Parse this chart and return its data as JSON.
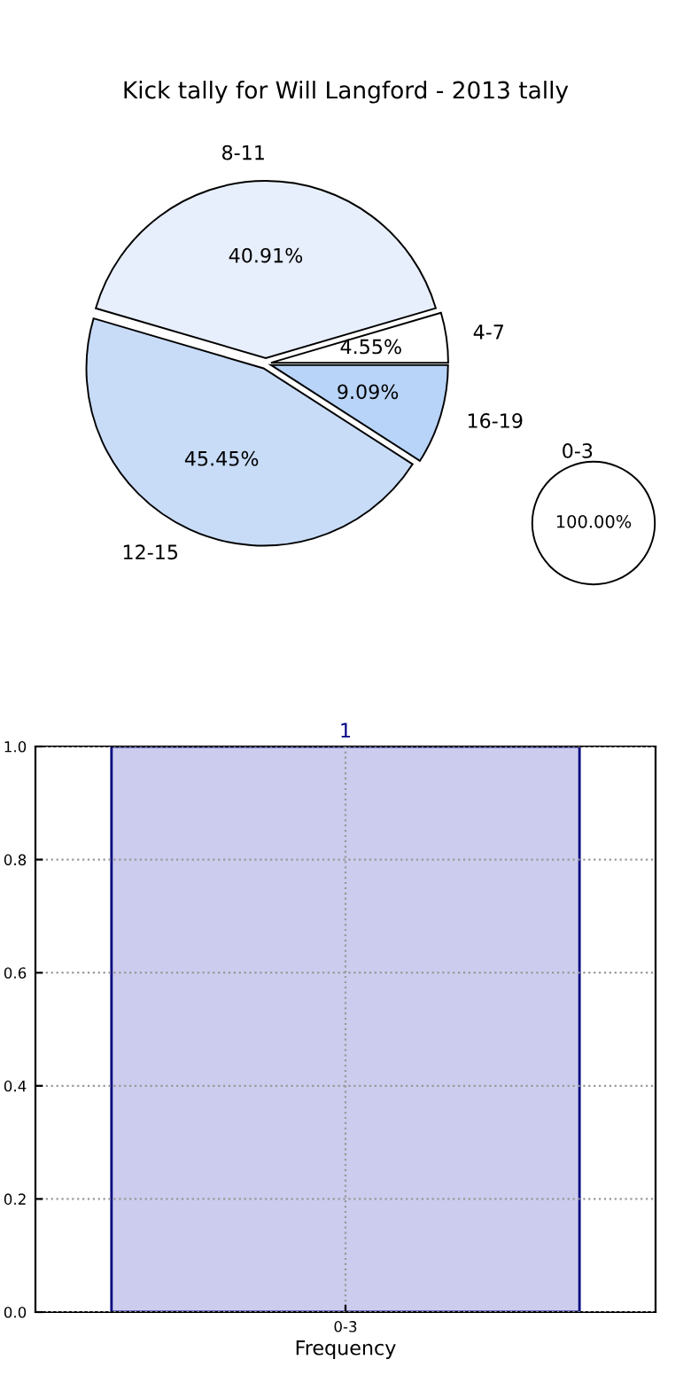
{
  "chart_data": [
    {
      "type": "pie",
      "title": "Kick tally for Will Langford - 2013 tally",
      "categories": [
        "4-7",
        "8-11",
        "12-15",
        "16-19"
      ],
      "values": [
        4.55,
        40.91,
        45.45,
        9.09
      ],
      "colors": [
        "#ffffff",
        "#e8effc",
        "#c8dcf8",
        "#b8d4f8"
      ],
      "value_labels": [
        "4.55%",
        "40.91%",
        "45.45%",
        "9.09%"
      ]
    },
    {
      "type": "pie",
      "categories": [
        "0-3"
      ],
      "values": [
        100
      ],
      "colors": [
        "#ffffff"
      ],
      "value_labels": [
        "100.00%"
      ]
    },
    {
      "type": "bar",
      "categories": [
        "0-3"
      ],
      "values": [
        1
      ],
      "color": "#ccccee",
      "xlabel": "Frequency",
      "ylim": [
        0,
        1
      ],
      "yticks": [
        {
          "value": 0,
          "label": "0.0"
        },
        {
          "value": 0.2,
          "label": "0.2"
        },
        {
          "value": 0.4,
          "label": "0.4"
        },
        {
          "value": 0.6,
          "label": "0.6"
        },
        {
          "value": 0.8,
          "label": "0.8"
        },
        {
          "value": 1,
          "label": "1.0"
        }
      ],
      "grid": true,
      "data_labels": true
    }
  ]
}
